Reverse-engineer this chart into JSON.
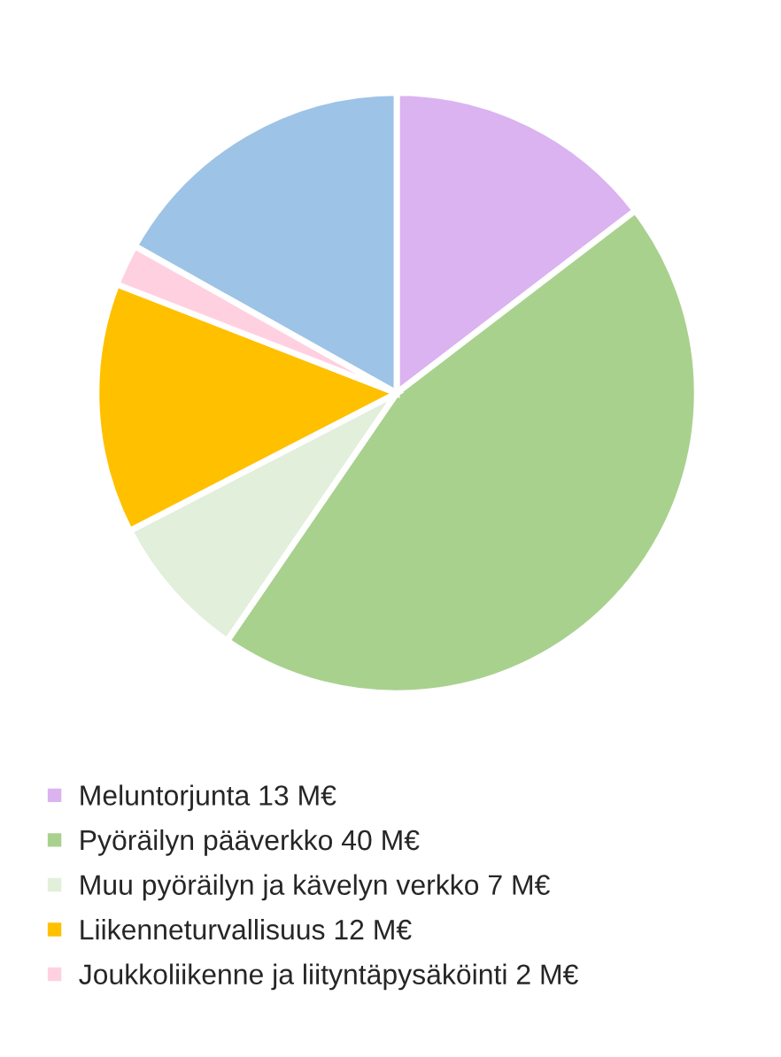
{
  "chart_data": {
    "type": "pie",
    "categories": [
      "Meluntorjunta 13 M€",
      "Pyöräilyn pääverkko 40 M€",
      "Muu pyöräilyn ja kävelyn verkko 7 M€",
      "Liikenneturvallisuus 12 M€",
      "Joukkoliikenne ja liityntäpysäköinti 2 M€",
      null
    ],
    "values": [
      13,
      40,
      7,
      12,
      2,
      15
    ],
    "colors": [
      "#dab3f0",
      "#a9d18e",
      "#e2efda",
      "#ffc000",
      "#ffd1e0",
      "#9dc3e6"
    ],
    "legend": "bottom"
  }
}
